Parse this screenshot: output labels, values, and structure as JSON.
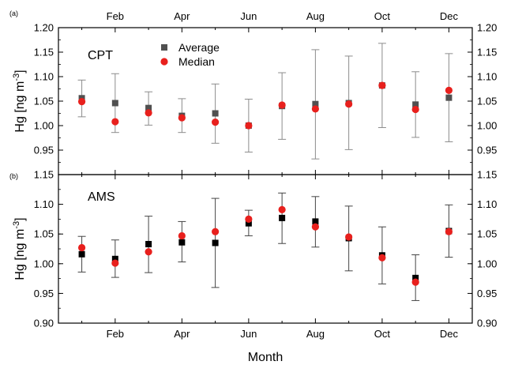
{
  "chart_data": [
    {
      "type": "scatter",
      "panel_label": "(a)",
      "site": "CPT",
      "ylabel": "Hg [ng m-3]",
      "ylim": [
        0.9,
        1.2
      ],
      "yticks": [
        0.95,
        1.0,
        1.05,
        1.1,
        1.15,
        1.2
      ],
      "xlim": [
        0.3,
        12.7
      ],
      "x_ticks": [
        {
          "x": 2,
          "label": "Feb"
        },
        {
          "x": 4,
          "label": "Apr"
        },
        {
          "x": 6,
          "label": "Jun"
        },
        {
          "x": 8,
          "label": "Aug"
        },
        {
          "x": 10,
          "label": "Oct"
        },
        {
          "x": 12,
          "label": "Dec"
        }
      ],
      "legend": {
        "position": "top-center"
      },
      "series": [
        {
          "name": "Average",
          "marker": "square",
          "color": "#505050",
          "x": [
            1,
            2,
            3,
            4,
            5,
            6,
            7,
            8,
            9,
            10,
            11,
            12
          ],
          "values": [
            1.056,
            1.046,
            1.036,
            1.02,
            1.025,
            1.0,
            1.04,
            1.044,
            1.046,
            1.082,
            1.043,
            1.057
          ],
          "error_low": [
            1.018,
            0.986,
            1.001,
            0.986,
            0.964,
            0.946,
            0.972,
            0.932,
            0.951,
            0.996,
            0.976,
            0.967
          ],
          "error_high": [
            1.093,
            1.106,
            1.069,
            1.055,
            1.085,
            1.054,
            1.108,
            1.155,
            1.142,
            1.168,
            1.11,
            1.147
          ]
        },
        {
          "name": "Median",
          "marker": "circle",
          "color": "#e8201d",
          "x": [
            1,
            2,
            3,
            4,
            5,
            6,
            7,
            8,
            9,
            10,
            11,
            12
          ],
          "values": [
            1.049,
            1.008,
            1.026,
            1.016,
            1.007,
            1.0,
            1.042,
            1.034,
            1.044,
            1.082,
            1.033,
            1.072
          ]
        }
      ]
    },
    {
      "type": "scatter",
      "panel_label": "(b)",
      "site": "AMS",
      "ylabel": "Hg [ng m-3]",
      "ylim": [
        0.9,
        1.15
      ],
      "yticks": [
        0.9,
        0.95,
        1.0,
        1.05,
        1.1,
        1.15
      ],
      "xlim": [
        0.3,
        12.7
      ],
      "xlabel": "Month",
      "x_ticks": [
        {
          "x": 2,
          "label": "Feb"
        },
        {
          "x": 4,
          "label": "Apr"
        },
        {
          "x": 6,
          "label": "Jun"
        },
        {
          "x": 8,
          "label": "Aug"
        },
        {
          "x": 10,
          "label": "Oct"
        },
        {
          "x": 12,
          "label": "Dec"
        }
      ],
      "series": [
        {
          "name": "Average",
          "marker": "square",
          "color": "#000000",
          "x": [
            1,
            2,
            3,
            4,
            5,
            6,
            7,
            8,
            9,
            10,
            11,
            12
          ],
          "values": [
            1.016,
            1.008,
            1.033,
            1.036,
            1.035,
            1.068,
            1.077,
            1.071,
            1.043,
            1.014,
            0.976,
            1.055
          ],
          "error_low": [
            0.986,
            0.977,
            0.985,
            1.003,
            0.96,
            1.047,
            1.034,
            1.028,
            0.988,
            0.966,
            0.938,
            1.011
          ],
          "error_high": [
            1.046,
            1.04,
            1.08,
            1.071,
            1.11,
            1.09,
            1.119,
            1.113,
            1.097,
            1.062,
            1.015,
            1.099
          ]
        },
        {
          "name": "Median",
          "marker": "circle",
          "color": "#e8201d",
          "x": [
            1,
            2,
            3,
            4,
            5,
            6,
            7,
            8,
            9,
            10,
            11,
            12
          ],
          "values": [
            1.027,
            1.001,
            1.02,
            1.047,
            1.054,
            1.075,
            1.091,
            1.062,
            1.045,
            1.01,
            0.969,
            1.054
          ]
        }
      ]
    }
  ]
}
